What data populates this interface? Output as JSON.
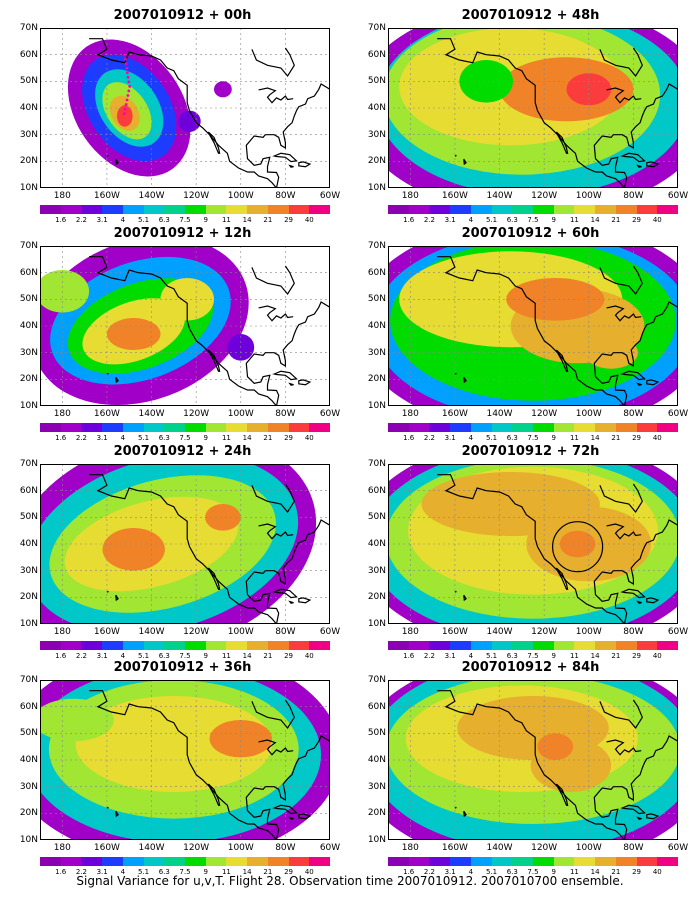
{
  "caption": "Signal Variance for u,v,T. Flight 28. Observation time 2007010912. 2007010700 ensemble.",
  "y_ticks": [
    "70N",
    "60N",
    "50N",
    "40N",
    "30N",
    "20N",
    "10N"
  ],
  "x_ticks": [
    "180",
    "160W",
    "140W",
    "120W",
    "100W",
    "80W",
    "60W"
  ],
  "colorbar": {
    "levels": [
      "1.6",
      "2.2",
      "3.1",
      "4",
      "5.1",
      "6.3",
      "7.5",
      "9",
      "11",
      "14",
      "21",
      "29",
      "40"
    ],
    "colors": [
      "#a000c8",
      "#6e00dc",
      "#1e3cff",
      "#00a0ff",
      "#00c8c8",
      "#00d28c",
      "#00dc00",
      "#a0e632",
      "#e6dc32",
      "#e6af2d",
      "#f08228",
      "#fa3c3c",
      "#f00082"
    ]
  },
  "panels": [
    {
      "title": "2007010912 + 00h"
    },
    {
      "title": "2007010912 + 48h"
    },
    {
      "title": "2007010912 + 12h"
    },
    {
      "title": "2007010912 + 60h"
    },
    {
      "title": "2007010912 + 24h"
    },
    {
      "title": "2007010912 + 72h"
    },
    {
      "title": "2007010912 + 36h"
    },
    {
      "title": "2007010912 + 84h"
    }
  ]
}
